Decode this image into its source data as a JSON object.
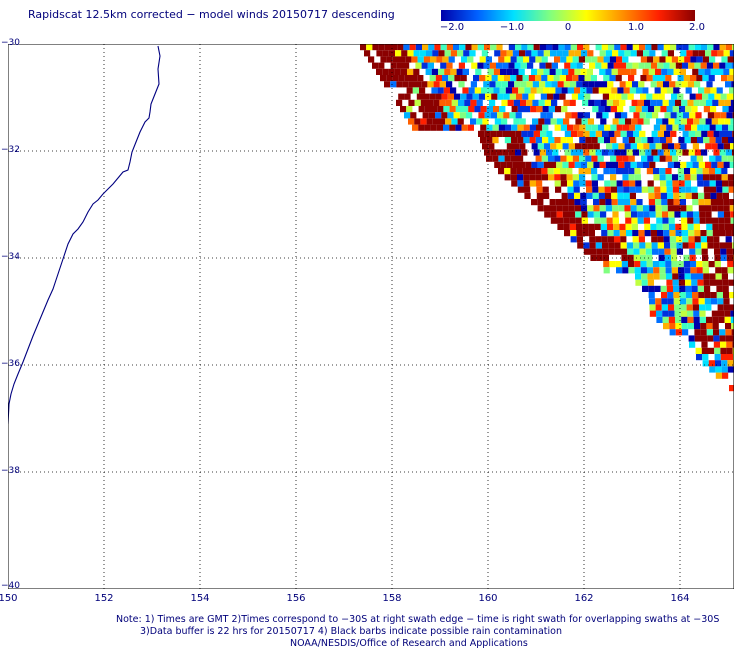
{
  "title": "Rapidscat 12.5km corrected − model winds 20150717 descending",
  "colorbar": {
    "ticks": [
      "−2.0",
      "−1.0",
      "0",
      "1.0",
      "2.0"
    ],
    "colors": [
      "#0000aa",
      "#0060ff",
      "#00e0ff",
      "#80ff80",
      "#ffff00",
      "#ff9000",
      "#ff2000",
      "#8b0000"
    ]
  },
  "axes": {
    "lat_labels": [
      "−30",
      "−32",
      "−34",
      "−36",
      "−38",
      "−40"
    ],
    "lon_labels": [
      "150",
      "152",
      "154",
      "156",
      "158",
      "160",
      "162",
      "164"
    ],
    "lat_range": [
      -40,
      -30
    ],
    "lon_range": [
      150,
      165
    ]
  },
  "notes": {
    "line1": "Note: 1) Times are GMT 2)Times correspond to −30S at right swath edge − time is right swath for overlapping swaths at −30S",
    "line2": "3)Data buffer is 22 hrs for 20150717 4) Black barbs indicate possible rain contamination",
    "line3": "NOAA/NESDIS/Office of Research and Applications"
  },
  "map": {
    "coast_color": "#000080",
    "grid_color": "#000000",
    "data_description_colors": [
      "#8b0000",
      "#0000aa",
      "#00e0ff",
      "#80ff80",
      "#ffff00",
      "#ff9000"
    ]
  }
}
